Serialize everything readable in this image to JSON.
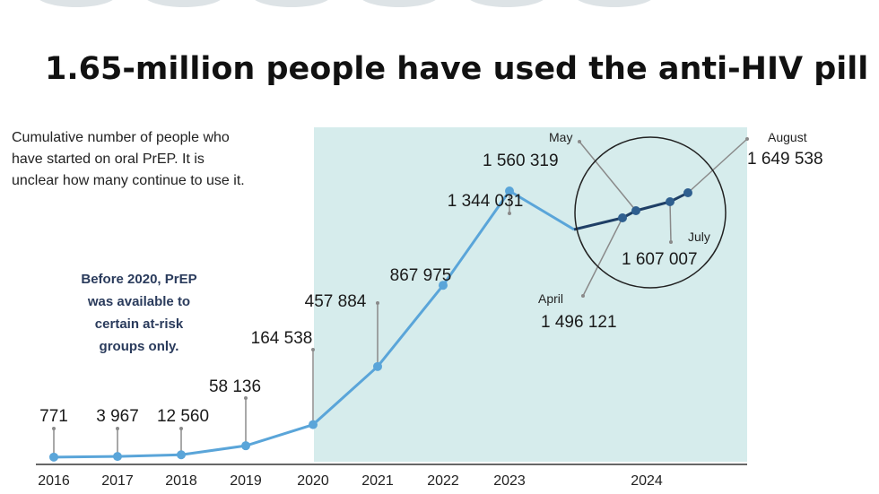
{
  "chart_data": {
    "type": "line",
    "title": "1.65-million people have used the anti-HIV pill",
    "subtitle_lines": [
      "Cumulative number of people who",
      "have started on oral PrEP. It is",
      "unclear how many continue to use it."
    ],
    "note_lines": [
      "Before 2020, PrEP",
      "was available to",
      "certain at-risk",
      "groups only."
    ],
    "x_ticks": [
      "2016",
      "2017",
      "2018",
      "2019",
      "2020",
      "2021",
      "2022",
      "2023",
      "2024"
    ],
    "points": [
      {
        "x": "2016",
        "y": 771,
        "label": "771"
      },
      {
        "x": "2017",
        "y": 3967,
        "label": "3 967"
      },
      {
        "x": "2018",
        "y": 12560,
        "label": "12 560"
      },
      {
        "x": "2019",
        "y": 58136,
        "label": "58 136"
      },
      {
        "x": "2020",
        "y": 164538,
        "label": "164 538"
      },
      {
        "x": "2021",
        "y": 457884,
        "label": "457 884"
      },
      {
        "x": "2022",
        "y": 867975,
        "label": "867 975"
      },
      {
        "x": "2023",
        "y": 1344031,
        "label": "1 344 031"
      }
    ],
    "zoom_points": [
      {
        "month": "April",
        "y": 1496121,
        "label": "1 496 121"
      },
      {
        "month": "May",
        "y": 1560319,
        "label": "1 560 319"
      },
      {
        "month": "July",
        "y": 1607007,
        "label": "1 607 007"
      },
      {
        "month": "August",
        "y": 1649538,
        "label": "1 649 538"
      }
    ],
    "ylim": [
      0,
      1700000
    ],
    "grid": false,
    "colors": {
      "line": "#5aa5d9",
      "line_dark": "#1f3f66",
      "marker": "#5aa5d9",
      "marker_dark": "#2f5f8f",
      "highlight_band": "#d6ecec",
      "note_text": "#2a3b5c",
      "leader": "#8a8a8a"
    }
  }
}
